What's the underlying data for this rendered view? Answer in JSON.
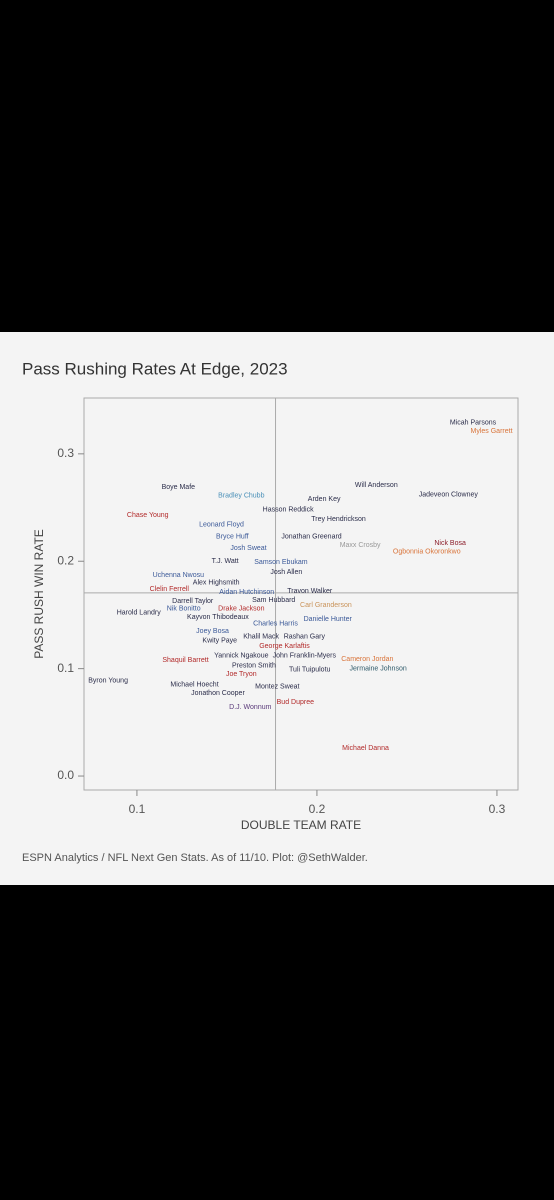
{
  "chart_data": {
    "type": "scatter",
    "title": "Pass Rushing Rates At Edge, 2023",
    "x_label": "DOUBLE TEAM RATE",
    "y_label": "PASS RUSH WIN RATE",
    "caption": "ESPN Analytics / NFL Next Gen Stats. As of 11/10. Plot: @SethWalder.",
    "xlim": [
      0.0706,
      0.3117
    ],
    "ylim": [
      -0.013,
      0.352
    ],
    "xticks": [
      0.1,
      0.2,
      0.3
    ],
    "yticks": [
      {
        "value": 0,
        "label": "0.0"
      },
      0.1,
      0.2,
      0.3
    ],
    "reference_lines": {
      "x": 0.177,
      "y": 0.1705
    },
    "labels": [
      "Micah Parsons",
      "Myles Garrett",
      "Will Anderson",
      "Jadeveon Clowney",
      "Boye Mafe",
      "Bradley Chubb",
      "Arden Key",
      "Hasson Reddick",
      "Chase Young",
      "Trey Hendrickson",
      "Leonard Floyd",
      "Jonathan Greenard",
      "Bryce Huff",
      "Maxx Crosby",
      "Nick Bosa",
      "Ogbonnia Okoronkwo",
      "Josh Sweat",
      "T.J. Watt",
      "Samson Ebukam",
      "Josh Allen",
      "Uchenna Nwosu",
      "Alex Highsmith",
      "Clelin Ferrell",
      "Aidan Hutchinson",
      "Travon Walker",
      "Darrell Taylor",
      "Sam Hubbard",
      "Carl Granderson",
      "Nik Bonitto",
      "Drake Jackson",
      "Harold Landry",
      "Kayvon Thibodeaux",
      "Danielle Hunter",
      "Charles Harris",
      "Joey Bosa",
      "Kwity Paye",
      "Khalil Mack",
      "Rashan Gary",
      "George Karlaftis",
      "Yannick Ngakoue",
      "John Franklin-Myers",
      "Shaquil Barrett",
      "Cameron Jordan",
      "Preston Smith",
      "Jermaine Johnson",
      "Tuli Tuipulotu",
      "Joe Tryon",
      "Byron Young",
      "Michael Hoecht",
      "Montez Sweat",
      "Jonathon Cooper",
      "Bud Dupree",
      "D.J. Wonnum",
      "Michael Danna"
    ],
    "x": [
      0.2867,
      0.297,
      0.233,
      0.273,
      0.123,
      0.158,
      0.204,
      0.184,
      0.106,
      0.212,
      0.147,
      0.197,
      0.153,
      0.224,
      0.274,
      0.261,
      0.162,
      0.149,
      0.18,
      0.183,
      0.123,
      0.144,
      0.118,
      0.161,
      0.196,
      0.131,
      0.176,
      0.205,
      0.126,
      0.158,
      0.101,
      0.145,
      0.206,
      0.177,
      0.142,
      0.146,
      0.169,
      0.193,
      0.182,
      0.158,
      0.193,
      0.127,
      0.228,
      0.165,
      0.234,
      0.196,
      0.158,
      0.084,
      0.132,
      0.178,
      0.145,
      0.188,
      0.163,
      0.227
    ],
    "values": [
      0.329,
      0.321,
      0.271,
      0.262,
      0.269,
      0.261,
      0.258,
      0.248,
      0.243,
      0.239,
      0.234,
      0.223,
      0.223,
      0.215,
      0.217,
      0.209,
      0.212,
      0.2,
      0.199,
      0.19,
      0.187,
      0.18,
      0.174,
      0.171,
      0.172,
      0.163,
      0.164,
      0.159,
      0.156,
      0.156,
      0.152,
      0.148,
      0.146,
      0.142,
      0.135,
      0.126,
      0.13,
      0.13,
      0.121,
      0.112,
      0.112,
      0.108,
      0.109,
      0.103,
      0.1,
      0.099,
      0.095,
      0.089,
      0.085,
      0.083,
      0.077,
      0.069,
      0.064,
      0.026
    ],
    "colors": [
      "#2b2d4a",
      "#d9743a",
      "#2b2d4a",
      "#2b2d4a",
      "#2b2d4a",
      "#4a90b8",
      "#2b2d4a",
      "#2b2d4a",
      "#b22a2a",
      "#2b2d4a",
      "#3b5998",
      "#2b2d4a",
      "#3b5998",
      "#999999",
      "#8b1e2b",
      "#d9743a",
      "#3b5998",
      "#2b2d4a",
      "#3b5998",
      "#2b2d4a",
      "#3b5998",
      "#2b2d4a",
      "#b22a2a",
      "#3b5998",
      "#2b2d4a",
      "#2b2d4a",
      "#2b2d4a",
      "#c9935a",
      "#3b5998",
      "#b22a2a",
      "#2b2d4a",
      "#2b2d4a",
      "#3b5998",
      "#3b5998",
      "#3b5998",
      "#2b2d4a",
      "#2b2d4a",
      "#2b2d4a",
      "#b22a2a",
      "#2b2d4a",
      "#2b2d4a",
      "#b22a2a",
      "#d9743a",
      "#2b2d4a",
      "#2e5a6a",
      "#2b2d4a",
      "#b22a2a",
      "#2b2d4a",
      "#2b2d4a",
      "#2b2d4a",
      "#2b2d4a",
      "#b22a2a",
      "#5a3a7a",
      "#b22a2a"
    ]
  }
}
